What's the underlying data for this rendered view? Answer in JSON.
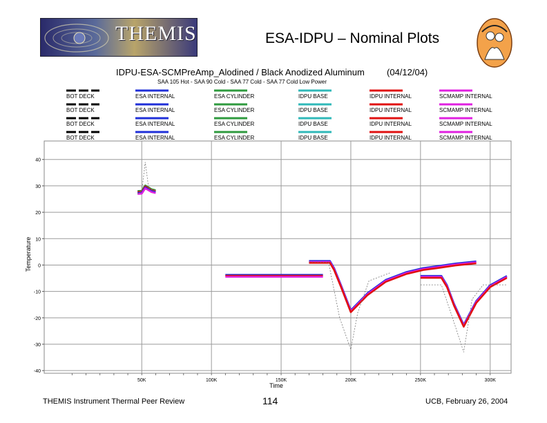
{
  "header": {
    "logo_text": "THEMIS",
    "slide_title": "ESA-IDPU – Nominal Plots"
  },
  "footer": {
    "left": "THEMIS Instrument Thermal Peer Review",
    "page": "114",
    "right": "UCB, February 26, 2004"
  },
  "chart_data": {
    "type": "line",
    "title": "IDPU-ESA-SCMPreAmp_Alodined / Black Anodized Aluminum",
    "title_date": "(04/12/04)",
    "subtitle": "SAA 105 Hot - SAA 90 Cold - SAA 77 Cold - SAA 77 Cold Low Power",
    "xlabel": "Time",
    "ylabel": "Temperature",
    "xlim": [
      -20000,
      315000
    ],
    "ylim": [
      -41,
      47
    ],
    "xticks": [
      50000,
      100000,
      150000,
      200000,
      250000,
      300000
    ],
    "xtick_labels": [
      "50K",
      "100K",
      "150K",
      "200K",
      "250K",
      "300K"
    ],
    "yticks": [
      40,
      30,
      20,
      10,
      0,
      -10,
      -20,
      -30,
      -40
    ],
    "ytick_labels": [
      "40",
      "30",
      "20",
      "10",
      "0",
      "-10",
      "-20",
      "-30",
      "-40"
    ],
    "grid": true,
    "legend": {
      "columns": [
        {
          "label": "BOT DECK",
          "color": "#000000",
          "dashed": true
        },
        {
          "label": "ESA INTERNAL",
          "color": "#1f2fd8",
          "dashed": false
        },
        {
          "label": "ESA CYLINDER",
          "color": "#2e9a3e",
          "dashed": false
        },
        {
          "label": "IDPU BASE",
          "color": "#2fb8b8",
          "dashed": false
        },
        {
          "label": "IDPU INTERNAL",
          "color": "#e01010",
          "dashed": false
        },
        {
          "label": "SCMAMP INTERNAL",
          "color": "#e020e0",
          "dashed": false
        }
      ],
      "rows": 4
    },
    "series": [
      {
        "name": "Case 1 (SAA 105 Hot) - component traces",
        "colors": [
          "#2e9a3e",
          "#e01010",
          "#1f2fd8",
          "#e020e0"
        ],
        "x": [
          47000,
          50000,
          52500,
          57000,
          60000
        ],
        "y": [
          27.5,
          27.6,
          29.6,
          28.2,
          27.8
        ]
      },
      {
        "name": "Case 1 (SAA 105 Hot) - BOT DECK",
        "x": [
          47000,
          50000,
          52500,
          55000,
          60000
        ],
        "y": [
          27,
          28,
          39,
          29,
          28
        ]
      },
      {
        "name": "Case 2 (SAA 90 Cold) - component traces",
        "colors": [
          "#1f2fd8",
          "#e01010",
          "#e020e0"
        ],
        "x": [
          110000,
          180000
        ],
        "y": [
          -4.1,
          -4.1
        ]
      },
      {
        "name": "Case 3 (SAA 77 Cold) - component traces",
        "colors": [
          "#1f2fd8",
          "#e020e0",
          "#e01010"
        ],
        "x": [
          170000,
          185000,
          188000,
          193000,
          200000,
          212000,
          225000,
          240000,
          252000,
          262000,
          275000,
          290000
        ],
        "y": [
          1.2,
          1.2,
          -1.5,
          -8,
          -17.5,
          -11,
          -6,
          -3,
          -1.5,
          -0.8,
          0.2,
          1.0
        ]
      },
      {
        "name": "Case 3 (SAA 77 Cold) - BOT DECK",
        "x": [
          170000,
          184000,
          192000,
          200000,
          205000,
          213000,
          228000
        ],
        "y": [
          1.2,
          1,
          -20,
          -32,
          -18,
          -6,
          -3
        ]
      },
      {
        "name": "Case 4 (SAA 77 Cold Low Power) - component traces",
        "colors": [
          "#1f2fd8",
          "#e020e0",
          "#e01010"
        ],
        "x": [
          250000,
          265000,
          269000,
          274000,
          281000,
          290000,
          300000,
          312000
        ],
        "y": [
          -4.5,
          -4.5,
          -8,
          -15,
          -23,
          -14,
          -8,
          -4.5
        ]
      },
      {
        "name": "Case 4 (SAA 77 Cold Low Power) - BOT DECK",
        "x": [
          250000,
          265000,
          273000,
          281000,
          287000,
          295000,
          312000
        ],
        "y": [
          -7.5,
          -7.5,
          -20,
          -33,
          -13,
          -7.5,
          -7.5
        ]
      }
    ]
  }
}
